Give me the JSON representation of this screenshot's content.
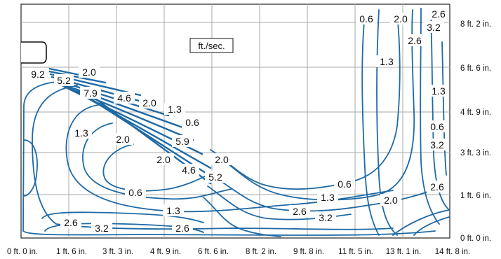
{
  "unit_label": "ft./sec.",
  "bottom_axis_labels": [
    "0 ft. 0 in.",
    "1 ft. 6 in.",
    "3 ft. 3 in.",
    "4 ft. 9 in.",
    "6 ft. 6 in.",
    "8 ft. 2 in.",
    "9 ft. 8 in.",
    "11 ft. 5 in.",
    "13 ft. 1 in.",
    "14 ft. 8 in."
  ],
  "right_axis_labels": [
    "8 ft. 2 in.",
    "6 ft. 6 in.",
    "4 ft. 9 in.",
    "3 ft. 3 in.",
    "1 ft. 6 in.",
    "0 ft. 0 in."
  ],
  "contour_labels": [
    "9.2",
    "5.2",
    "2.0",
    "7.9",
    "4.6",
    "2.0",
    "1.3",
    "0.6",
    "1.3",
    "2.0",
    "5.9",
    "2.0",
    "2.0",
    "4.6",
    "5.2",
    "0.6",
    "1.3",
    "2.6",
    "3.2",
    "2.6",
    "0.6",
    "1.3",
    "2.0",
    "2.6",
    "3.2",
    "0.6",
    "2.0",
    "2.6",
    "3.2",
    "2.6",
    "1.3",
    "1.3",
    "0.6",
    "3.2",
    "2.6"
  ],
  "colors": {
    "contour": "#1f6aa5",
    "grid": "#a9a9a9"
  }
}
